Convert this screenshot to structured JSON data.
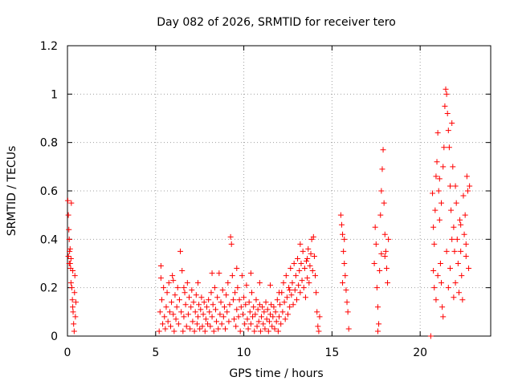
{
  "chart_data": {
    "type": "scatter",
    "title": "Day 082 of 2026, SRMTID for receiver tero",
    "xlabel": "GPS time / hours",
    "ylabel": "SRMTID / TECUs",
    "xlim": [
      0,
      24
    ],
    "ylim": [
      0,
      1.2
    ],
    "xticks": [
      "0",
      "5",
      "10",
      "15",
      "20"
    ],
    "xtick_values": [
      0,
      5,
      10,
      15,
      20
    ],
    "yticks": [
      "0",
      "0.2",
      "0.4",
      "0.6",
      "0.8",
      "1",
      "1.2"
    ],
    "ytick_values": [
      0,
      0.2,
      0.4,
      0.6,
      0.8,
      1.0,
      1.2
    ],
    "grid": true,
    "marker": "+",
    "color": "#ff0000",
    "series": [
      {
        "name": "SRMTID",
        "points": [
          [
            0.02,
            0.56
          ],
          [
            0.05,
            0.5
          ],
          [
            0.08,
            0.44
          ],
          [
            0.1,
            0.4
          ],
          [
            0.12,
            0.35
          ],
          [
            0.15,
            0.3
          ],
          [
            0.18,
            0.28
          ],
          [
            0.2,
            0.32
          ],
          [
            0.22,
            0.55
          ],
          [
            0.25,
            0.2
          ],
          [
            0.28,
            0.15
          ],
          [
            0.3,
            0.12
          ],
          [
            0.32,
            0.1
          ],
          [
            0.35,
            0.05
          ],
          [
            0.38,
            0.02
          ],
          [
            0.4,
            0.18
          ],
          [
            0.42,
            0.25
          ],
          [
            0.45,
            0.08
          ],
          [
            0.48,
            0.14
          ],
          [
            0.1,
            0.3
          ],
          [
            0.2,
            0.22
          ],
          [
            0.3,
            0.27
          ],
          [
            0.15,
            0.36
          ],
          [
            0.05,
            0.33
          ],
          [
            5.2,
            0.02
          ],
          [
            5.25,
            0.1
          ],
          [
            5.3,
            0.24
          ],
          [
            5.35,
            0.15
          ],
          [
            5.4,
            0.05
          ],
          [
            5.45,
            0.2
          ],
          [
            5.5,
            0.08
          ],
          [
            5.55,
            0.03
          ],
          [
            5.6,
            0.12
          ],
          [
            5.65,
            0.18
          ],
          [
            5.7,
            0.06
          ],
          [
            5.75,
            0.22
          ],
          [
            5.8,
            0.1
          ],
          [
            5.85,
            0.04
          ],
          [
            5.9,
            0.14
          ],
          [
            5.95,
            0.25
          ],
          [
            6.0,
            0.09
          ],
          [
            6.05,
            0.02
          ],
          [
            6.1,
            0.17
          ],
          [
            6.15,
            0.07
          ],
          [
            6.2,
            0.12
          ],
          [
            6.25,
            0.2
          ],
          [
            6.3,
            0.05
          ],
          [
            6.35,
            0.15
          ],
          [
            6.4,
            0.35
          ],
          [
            6.45,
            0.1
          ],
          [
            6.5,
            0.27
          ],
          [
            6.55,
            0.02
          ],
          [
            6.6,
            0.08
          ],
          [
            6.65,
            0.18
          ],
          [
            6.7,
            0.13
          ],
          [
            6.75,
            0.04
          ],
          [
            6.8,
            0.22
          ],
          [
            6.85,
            0.09
          ],
          [
            6.9,
            0.16
          ],
          [
            6.95,
            0.03
          ],
          [
            7.0,
            0.12
          ],
          [
            7.05,
            0.19
          ],
          [
            7.1,
            0.06
          ],
          [
            7.15,
            0.14
          ],
          [
            7.2,
            0.02
          ],
          [
            7.25,
            0.1
          ],
          [
            7.3,
            0.17
          ],
          [
            7.35,
            0.05
          ],
          [
            7.4,
            0.08
          ],
          [
            7.45,
            0.13
          ],
          [
            7.5,
            0.03
          ],
          [
            7.55,
            0.11
          ],
          [
            7.6,
            0.16
          ],
          [
            7.65,
            0.04
          ],
          [
            7.7,
            0.09
          ],
          [
            7.75,
            0.14
          ],
          [
            7.8,
            0.02
          ],
          [
            7.85,
            0.07
          ],
          [
            7.9,
            0.12
          ],
          [
            7.95,
            0.05
          ],
          [
            8.0,
            0.15
          ],
          [
            8.05,
            0.1
          ],
          [
            8.1,
            0.04
          ],
          [
            8.15,
            0.18
          ],
          [
            8.2,
            0.08
          ],
          [
            8.25,
            0.13
          ],
          [
            8.3,
            0.02
          ],
          [
            8.35,
            0.2
          ],
          [
            8.4,
            0.11
          ],
          [
            8.45,
            0.06
          ],
          [
            8.5,
            0.16
          ],
          [
            8.55,
            0.03
          ],
          [
            8.6,
            0.26
          ],
          [
            8.65,
            0.09
          ],
          [
            8.7,
            0.14
          ],
          [
            8.75,
            0.05
          ],
          [
            8.8,
            0.19
          ],
          [
            8.85,
            0.08
          ],
          [
            8.9,
            0.12
          ],
          [
            8.95,
            0.03
          ],
          [
            9.0,
            0.17
          ],
          [
            9.05,
            0.1
          ],
          [
            9.1,
            0.22
          ],
          [
            9.15,
            0.06
          ],
          [
            9.2,
            0.13
          ],
          [
            9.25,
            0.41
          ],
          [
            9.3,
            0.38
          ],
          [
            9.35,
            0.25
          ],
          [
            9.4,
            0.15
          ],
          [
            9.45,
            0.07
          ],
          [
            9.5,
            0.18
          ],
          [
            9.55,
            0.04
          ],
          [
            9.6,
            0.11
          ],
          [
            9.65,
            0.2
          ],
          [
            9.7,
            0.08
          ],
          [
            9.75,
            0.15
          ],
          [
            9.8,
            0.02
          ],
          [
            9.85,
            0.12
          ],
          [
            9.9,
            0.25
          ],
          [
            9.95,
            0.09
          ],
          [
            10.0,
            0.16
          ],
          [
            10.05,
            0.05
          ],
          [
            10.1,
            0.13
          ],
          [
            10.15,
            0.21
          ],
          [
            10.2,
            0.07
          ],
          [
            10.25,
            0.03
          ],
          [
            10.3,
            0.14
          ],
          [
            10.35,
            0.1
          ],
          [
            10.4,
            0.05
          ],
          [
            10.45,
            0.18
          ],
          [
            10.5,
            0.08
          ],
          [
            10.55,
            0.12
          ],
          [
            10.6,
            0.02
          ],
          [
            10.65,
            0.09
          ],
          [
            10.7,
            0.15
          ],
          [
            10.75,
            0.04
          ],
          [
            10.8,
            0.11
          ],
          [
            10.85,
            0.06
          ],
          [
            10.9,
            0.13
          ],
          [
            10.95,
            0.02
          ],
          [
            11.0,
            0.08
          ],
          [
            11.05,
            0.12
          ],
          [
            11.1,
            0.05
          ],
          [
            11.15,
            0.1
          ],
          [
            11.2,
            0.03
          ],
          [
            11.25,
            0.14
          ],
          [
            11.3,
            0.07
          ],
          [
            11.35,
            0.11
          ],
          [
            11.4,
            0.02
          ],
          [
            11.45,
            0.06
          ],
          [
            11.5,
            0.09
          ],
          [
            11.55,
            0.13
          ],
          [
            11.6,
            0.04
          ],
          [
            11.65,
            0.08
          ],
          [
            11.7,
            0.12
          ],
          [
            11.75,
            0.03
          ],
          [
            11.8,
            0.1
          ],
          [
            11.85,
            0.06
          ],
          [
            11.9,
            0.15
          ],
          [
            11.95,
            0.02
          ],
          [
            12.0,
            0.08
          ],
          [
            12.05,
            0.13
          ],
          [
            12.1,
            0.05
          ],
          [
            12.15,
            0.18
          ],
          [
            12.2,
            0.1
          ],
          [
            12.25,
            0.22
          ],
          [
            12.3,
            0.14
          ],
          [
            12.35,
            0.07
          ],
          [
            12.4,
            0.25
          ],
          [
            12.45,
            0.16
          ],
          [
            12.5,
            0.09
          ],
          [
            12.55,
            0.2
          ],
          [
            12.6,
            0.12
          ],
          [
            12.65,
            0.28
          ],
          [
            12.7,
            0.17
          ],
          [
            12.75,
            0.22
          ],
          [
            12.8,
            0.13
          ],
          [
            12.85,
            0.3
          ],
          [
            12.9,
            0.19
          ],
          [
            12.95,
            0.25
          ],
          [
            13.0,
            0.15
          ],
          [
            13.05,
            0.32
          ],
          [
            13.1,
            0.21
          ],
          [
            13.15,
            0.27
          ],
          [
            13.2,
            0.18
          ],
          [
            13.25,
            0.3
          ],
          [
            13.3,
            0.23
          ],
          [
            13.35,
            0.35
          ],
          [
            13.4,
            0.2
          ],
          [
            13.45,
            0.28
          ],
          [
            13.5,
            0.16
          ],
          [
            13.55,
            0.31
          ],
          [
            13.6,
            0.24
          ],
          [
            13.65,
            0.36
          ],
          [
            13.7,
            0.22
          ],
          [
            13.75,
            0.29
          ],
          [
            13.8,
            0.34
          ],
          [
            13.85,
            0.4
          ],
          [
            13.9,
            0.27
          ],
          [
            13.95,
            0.41
          ],
          [
            14.0,
            0.33
          ],
          [
            14.05,
            0.25
          ],
          [
            14.1,
            0.18
          ],
          [
            14.15,
            0.1
          ],
          [
            14.2,
            0.04
          ],
          [
            14.25,
            0.02
          ],
          [
            14.3,
            0.08
          ],
          [
            5.3,
            0.29
          ],
          [
            6.0,
            0.23
          ],
          [
            6.6,
            0.2
          ],
          [
            7.4,
            0.22
          ],
          [
            8.2,
            0.26
          ],
          [
            9.6,
            0.28
          ],
          [
            10.4,
            0.26
          ],
          [
            10.9,
            0.22
          ],
          [
            11.5,
            0.21
          ],
          [
            12.0,
            0.18
          ],
          [
            12.6,
            0.19
          ],
          [
            13.2,
            0.38
          ],
          [
            13.6,
            0.32
          ],
          [
            15.5,
            0.5
          ],
          [
            15.55,
            0.46
          ],
          [
            15.6,
            0.42
          ],
          [
            15.65,
            0.35
          ],
          [
            15.7,
            0.3
          ],
          [
            15.75,
            0.25
          ],
          [
            15.8,
            0.19
          ],
          [
            15.85,
            0.14
          ],
          [
            15.9,
            0.1
          ],
          [
            15.95,
            0.03
          ],
          [
            15.6,
            0.22
          ],
          [
            15.7,
            0.4
          ],
          [
            17.4,
            0.3
          ],
          [
            17.45,
            0.45
          ],
          [
            17.5,
            0.38
          ],
          [
            17.55,
            0.2
          ],
          [
            17.6,
            0.12
          ],
          [
            17.65,
            0.05
          ],
          [
            17.7,
            0.27
          ],
          [
            17.75,
            0.5
          ],
          [
            17.8,
            0.6
          ],
          [
            17.85,
            0.69
          ],
          [
            17.9,
            0.77
          ],
          [
            17.95,
            0.55
          ],
          [
            18.0,
            0.42
          ],
          [
            18.05,
            0.35
          ],
          [
            18.1,
            0.28
          ],
          [
            18.15,
            0.22
          ],
          [
            18.2,
            0.4
          ],
          [
            17.6,
            0.02
          ],
          [
            17.8,
            0.34
          ],
          [
            18.0,
            0.33
          ],
          [
            20.6,
            0.0
          ],
          [
            20.7,
            0.59
          ],
          [
            20.75,
            0.45
          ],
          [
            20.8,
            0.38
          ],
          [
            20.85,
            0.52
          ],
          [
            20.9,
            0.66
          ],
          [
            20.95,
            0.72
          ],
          [
            21.0,
            0.84
          ],
          [
            21.05,
            0.6
          ],
          [
            21.1,
            0.48
          ],
          [
            21.15,
            0.3
          ],
          [
            21.2,
            0.22
          ],
          [
            21.25,
            0.12
          ],
          [
            21.3,
            0.7
          ],
          [
            21.35,
            0.78
          ],
          [
            21.4,
            0.95
          ],
          [
            21.45,
            1.02
          ],
          [
            21.5,
            1.0
          ],
          [
            21.55,
            0.92
          ],
          [
            21.6,
            0.85
          ],
          [
            21.65,
            0.78
          ],
          [
            21.7,
            0.62
          ],
          [
            21.75,
            0.52
          ],
          [
            21.8,
            0.88
          ],
          [
            21.85,
            0.7
          ],
          [
            21.9,
            0.45
          ],
          [
            21.95,
            0.35
          ],
          [
            22.0,
            0.22
          ],
          [
            22.05,
            0.55
          ],
          [
            22.1,
            0.4
          ],
          [
            22.15,
            0.3
          ],
          [
            22.2,
            0.18
          ],
          [
            22.25,
            0.48
          ],
          [
            22.3,
            0.35
          ],
          [
            22.35,
            0.25
          ],
          [
            22.4,
            0.15
          ],
          [
            22.45,
            0.58
          ],
          [
            22.5,
            0.42
          ],
          [
            22.55,
            0.5
          ],
          [
            22.6,
            0.33
          ],
          [
            22.65,
            0.66
          ],
          [
            22.7,
            0.6
          ],
          [
            22.75,
            0.28
          ],
          [
            20.8,
            0.2
          ],
          [
            20.9,
            0.15
          ],
          [
            21.0,
            0.25
          ],
          [
            21.2,
            0.55
          ],
          [
            21.5,
            0.35
          ],
          [
            21.7,
            0.28
          ],
          [
            22.0,
            0.62
          ],
          [
            22.3,
            0.46
          ],
          [
            22.6,
            0.38
          ],
          [
            21.6,
            0.2
          ],
          [
            21.9,
            0.16
          ],
          [
            21.3,
            0.08
          ],
          [
            22.8,
            0.62
          ],
          [
            20.75,
            0.27
          ],
          [
            21.1,
            0.65
          ],
          [
            21.8,
            0.4
          ]
        ]
      }
    ]
  }
}
